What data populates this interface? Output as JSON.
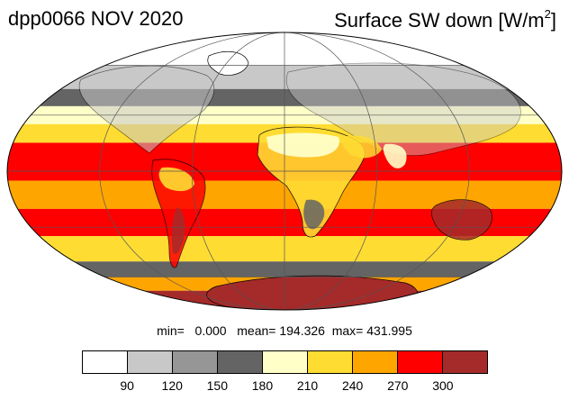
{
  "title_left": "dpp0066 NOV 2020",
  "title_right": {
    "main": "Surface SW down [W/m",
    "sup": "2",
    "close": "]"
  },
  "stats": {
    "min_label": "min=",
    "min": "0.000",
    "mean_label": "mean=",
    "mean": "194.326",
    "max_label": "max=",
    "max": "431.995"
  },
  "colorbar": {
    "colors": [
      "#ffffff",
      "#c8c8c8",
      "#969696",
      "#646464",
      "#ffffc8",
      "#ffdc32",
      "#ffa500",
      "#ff0000",
      "#a52a2a"
    ],
    "ticks": [
      "90",
      "120",
      "150",
      "180",
      "210",
      "240",
      "270",
      "300"
    ]
  },
  "map": {
    "projection": "mollweide",
    "latitude_bands": [
      {
        "lat_min": 60,
        "lat_max": 90,
        "color": "#ffffff"
      },
      {
        "lat_min": 45,
        "lat_max": 60,
        "color": "#c8c8c8"
      },
      {
        "lat_min": 35,
        "lat_max": 45,
        "color": "#646464"
      },
      {
        "lat_min": 25,
        "lat_max": 35,
        "color": "#ffffc8"
      },
      {
        "lat_min": 15,
        "lat_max": 25,
        "color": "#ffdc32"
      },
      {
        "lat_min": -5,
        "lat_max": 15,
        "color": "#ff0000"
      },
      {
        "lat_min": -20,
        "lat_max": -5,
        "color": "#ffa500"
      },
      {
        "lat_min": -35,
        "lat_max": -20,
        "color": "#ff0000"
      },
      {
        "lat_min": -50,
        "lat_max": -35,
        "color": "#ffdc32"
      },
      {
        "lat_min": -60,
        "lat_max": -50,
        "color": "#646464"
      },
      {
        "lat_min": -70,
        "lat_max": -60,
        "color": "#ffa500"
      },
      {
        "lat_min": -90,
        "lat_max": -70,
        "color": "#a52a2a"
      }
    ]
  }
}
